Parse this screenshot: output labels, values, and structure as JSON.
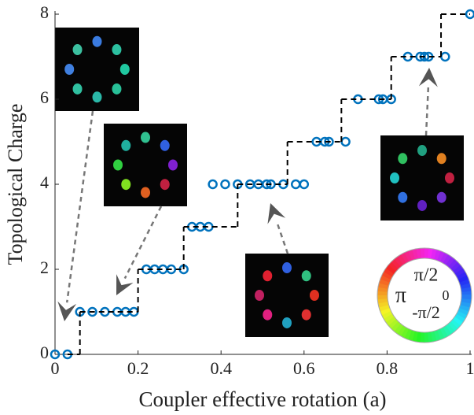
{
  "chart_data": {
    "type": "scatter",
    "xlabel": "Coupler effective rotation (a)",
    "ylabel": "Topological Charge",
    "xlim": [
      0,
      1
    ],
    "ylim": [
      0,
      8
    ],
    "xticks": [
      0,
      0.2,
      0.4,
      0.6,
      0.8,
      1
    ],
    "yticks": [
      0,
      2,
      4,
      6,
      8
    ],
    "series": [
      {
        "type": "scatter",
        "color": "#0072bd",
        "x": [
          0,
          0.03,
          0.06,
          0.09,
          0.12,
          0.15,
          0.17,
          0.19,
          0.22,
          0.24,
          0.26,
          0.28,
          0.31,
          0.33,
          0.35,
          0.37,
          0.38,
          0.41,
          0.44,
          0.47,
          0.49,
          0.51,
          0.52,
          0.55,
          0.58,
          0.6,
          0.63,
          0.65,
          0.66,
          0.7,
          0.73,
          0.78,
          0.79,
          0.81,
          0.85,
          0.88,
          0.89,
          0.9,
          0.94,
          1
        ],
        "values": [
          0,
          0,
          1,
          1,
          1,
          1,
          1,
          1,
          2,
          2,
          2,
          2,
          2,
          3,
          3,
          3,
          4,
          4,
          4,
          4,
          4,
          4,
          4,
          4,
          4,
          4,
          5,
          5,
          5,
          5,
          6,
          6,
          6,
          6,
          7,
          7,
          7,
          7,
          7,
          8
        ]
      },
      {
        "type": "step",
        "color": "#000000",
        "x": [
          0.03,
          0.06,
          0.2,
          0.31,
          0.44,
          0.56,
          0.69,
          0.81,
          0.93
        ],
        "x_end": [
          0.06,
          0.2,
          0.31,
          0.44,
          0.56,
          0.69,
          0.81,
          0.93,
          1
        ],
        "values": [
          0,
          1,
          2,
          3,
          4,
          5,
          6,
          7,
          8
        ]
      }
    ],
    "phase_labels": [
      "π/2",
      "π",
      "0",
      "-π/2"
    ]
  }
}
